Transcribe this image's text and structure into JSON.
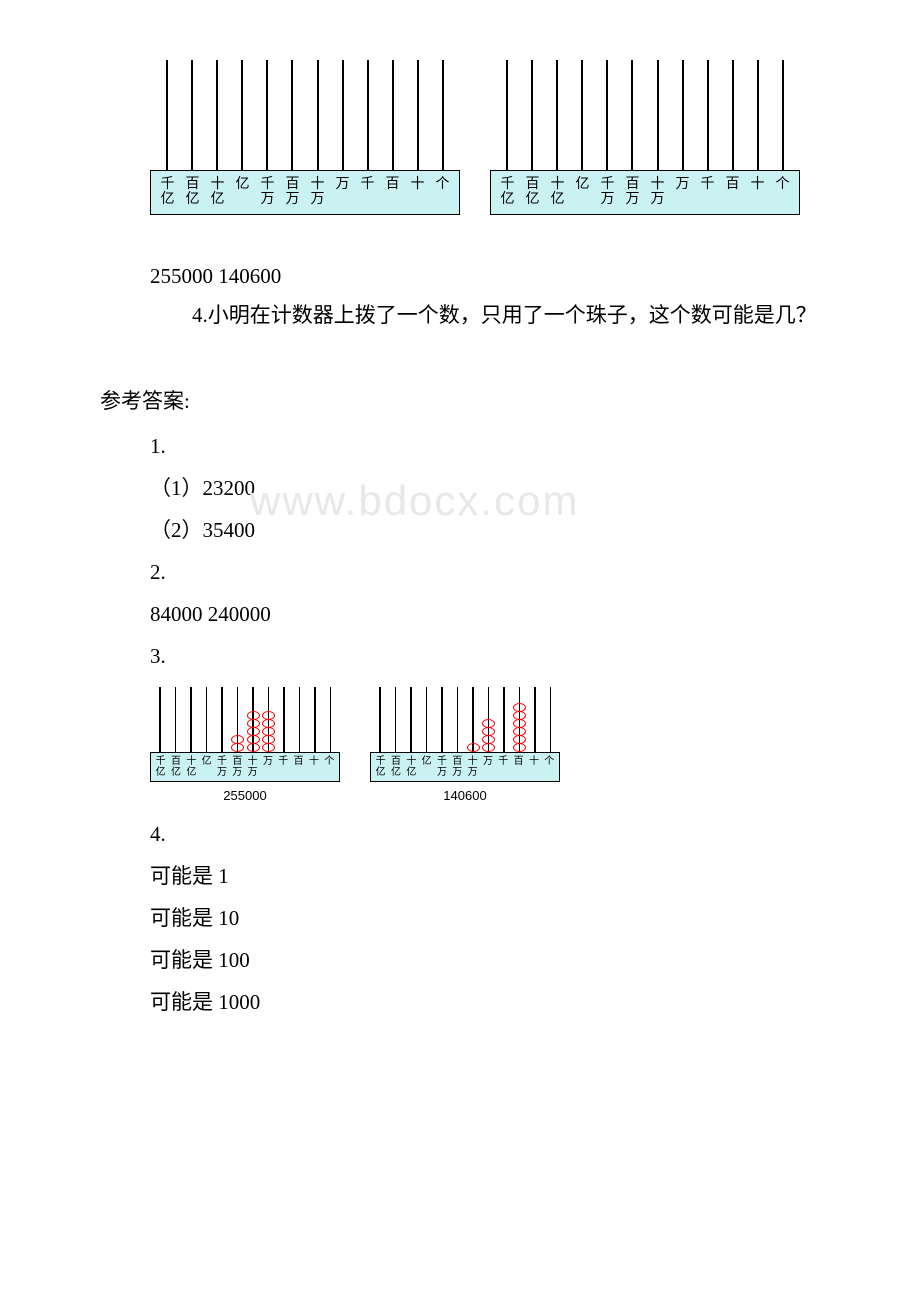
{
  "abacus_labels": [
    "千\n亿",
    "百\n亿",
    "十\n亿",
    "亿",
    "千\n万",
    "百\n万",
    "十\n万",
    "万",
    "千",
    "百",
    "十",
    "个"
  ],
  "q3_numbers": "255000 140600",
  "q4_text": "4.小明在计数器上拨了一个数，只用了一个珠子，这个数可能是几？",
  "answers_header": "参考答案:",
  "ans1": "1.",
  "ans1_1": "（1）23200",
  "ans1_2": "（2）35400",
  "ans2": "2.",
  "ans2_line": "84000 240000",
  "ans3": "3.",
  "ans4": "4.",
  "ans4_1": "可能是 1",
  "ans4_2": "可能是 10",
  "ans4_3": "可能是 100",
  "ans4_4": "可能是 1000",
  "watermark": "www.bdocx.com",
  "small_abacus_1": {
    "label": "255000",
    "beads": {
      "5": 2,
      "6": 5,
      "7": 5
    }
  },
  "small_abacus_2": {
    "label": "140600",
    "beads": {
      "6": 1,
      "7": 4,
      "9": 6
    }
  },
  "colors": {
    "base_bg": "#caf2f3",
    "bead_border": "#ff0000",
    "watermark": "#e8e8e8",
    "text": "#000000"
  }
}
